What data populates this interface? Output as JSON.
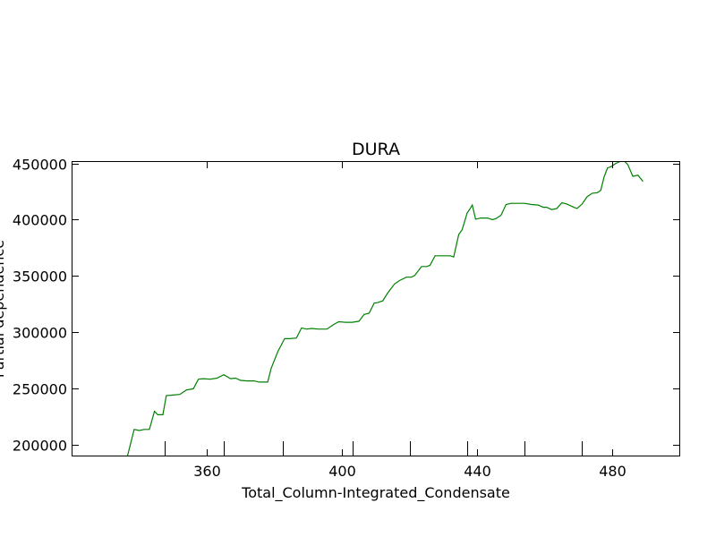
{
  "chart_data": {
    "type": "line",
    "title": "DURA",
    "xlabel": "Total_Column-Integrated_Condensate",
    "ylabel": "Partial dependence",
    "xlim": [
      320,
      500
    ],
    "ylim": [
      190000,
      452000
    ],
    "x_ticks": [
      360,
      400,
      440,
      480
    ],
    "y_ticks": [
      200000,
      250000,
      300000,
      350000,
      400000,
      450000
    ],
    "x_tick_labels": [
      "360",
      "400",
      "440",
      "480"
    ],
    "y_tick_labels": [
      "200000",
      "250000",
      "300000",
      "350000",
      "400000",
      "450000"
    ],
    "minor_x_ticks": [
      347.5,
      365,
      382.5,
      403,
      420,
      437,
      454,
      471
    ],
    "grid": false,
    "series": [
      {
        "color": "#008000",
        "x": [
          336.5,
          338.5,
          340,
          341.5,
          343,
          344.5,
          345.5,
          347,
          348,
          350,
          352,
          354,
          356,
          357.5,
          359,
          361,
          363,
          365,
          367,
          368.5,
          370,
          372,
          374,
          375.5,
          378,
          379,
          381,
          383,
          384.5,
          386.5,
          388,
          389.5,
          391,
          393,
          395.5,
          397.5,
          399,
          401,
          403,
          405,
          406.5,
          408,
          409.5,
          410.5,
          412,
          413.5,
          415.5,
          417,
          419,
          420.5,
          421.5,
          423.5,
          425,
          426,
          427.5,
          430,
          432,
          433,
          434.5,
          435.5,
          437,
          438,
          438.5,
          439.5,
          441,
          443,
          444.5,
          445.5,
          447,
          448.5,
          450,
          452,
          454,
          456,
          458,
          459.5,
          460.5,
          462,
          463.5,
          465,
          466.5,
          468.5,
          469.5,
          471,
          472.5,
          474,
          475.5,
          476.5,
          477.5,
          478.5,
          479.5,
          481,
          482.5,
          483.5,
          484.5,
          486,
          487.5,
          489
        ],
        "y": [
          190000,
          214000,
          213000,
          214000,
          214000,
          230000,
          227000,
          227000,
          244000,
          244500,
          245000,
          249000,
          250000,
          258500,
          259000,
          258500,
          259500,
          262500,
          259000,
          259500,
          257500,
          257000,
          257000,
          256000,
          256000,
          268000,
          283000,
          294500,
          294500,
          295000,
          304000,
          303000,
          303500,
          303000,
          303000,
          307000,
          309500,
          309000,
          309000,
          310000,
          316000,
          317000,
          326000,
          326500,
          328000,
          335000,
          343000,
          346000,
          349000,
          349000,
          350500,
          358500,
          358500,
          359500,
          368000,
          368000,
          368000,
          367000,
          387000,
          391000,
          406000,
          410500,
          413000,
          400500,
          401500,
          401500,
          400000,
          401000,
          404000,
          413500,
          414500,
          414500,
          414500,
          413500,
          413000,
          411000,
          411000,
          409000,
          410000,
          415000,
          414000,
          411000,
          410000,
          414000,
          420500,
          423500,
          424000,
          426000,
          438000,
          446000,
          447000,
          450000,
          452000,
          452000,
          449000,
          438500,
          439500,
          434000
        ]
      }
    ]
  }
}
